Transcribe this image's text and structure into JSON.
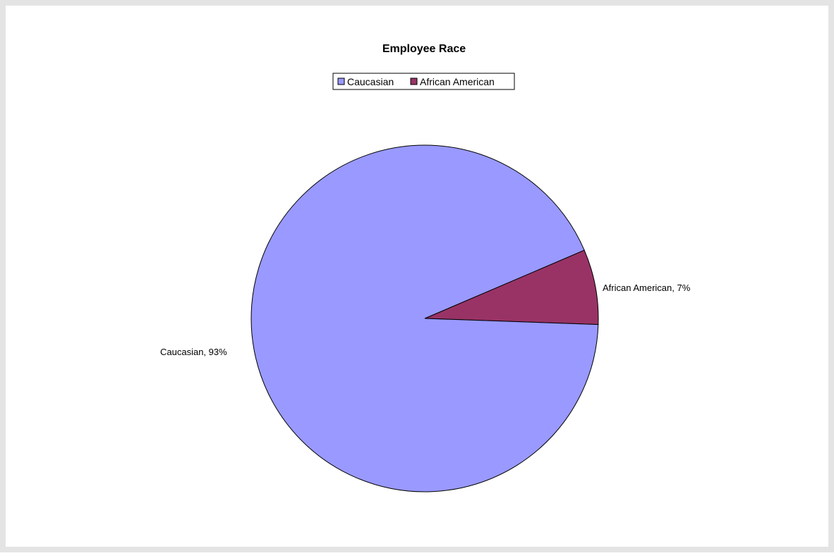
{
  "chart_data": {
    "type": "pie",
    "title": "Employee Race",
    "legend_position": "top",
    "slices": [
      {
        "name": "Caucasian",
        "value": 93,
        "label": "Caucasian, 93%",
        "color": "#9999ff"
      },
      {
        "name": "African American",
        "value": 7,
        "label": "African American, 7%",
        "color": "#993366"
      }
    ]
  }
}
